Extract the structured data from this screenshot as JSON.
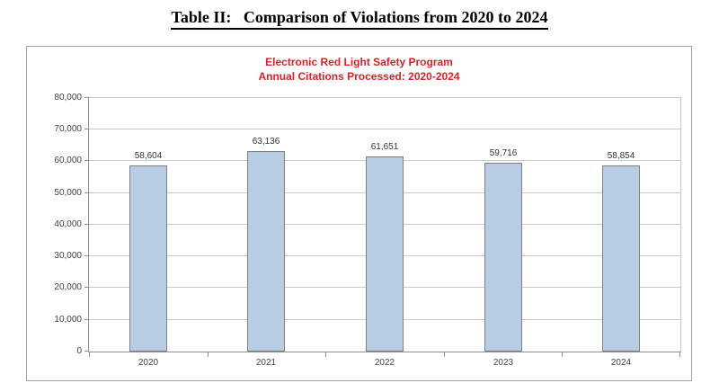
{
  "page": {
    "title": "Table II:   Comparison of Violations from 2020 to 2024"
  },
  "chart_data": {
    "type": "bar",
    "title": "Electronic Red Light Safety Program",
    "subtitle": "Annual Citations Processed: 2020-2024",
    "title_color": "#e01e25",
    "categories": [
      "2020",
      "2021",
      "2022",
      "2023",
      "2024"
    ],
    "values": [
      58604,
      63136,
      61651,
      59716,
      58854
    ],
    "value_labels": [
      "58,604",
      "63,136",
      "61,651",
      "59,716",
      "58,854"
    ],
    "xlabel": "",
    "ylabel": "",
    "ylim": [
      0,
      80000
    ],
    "ytick_step": 10000,
    "ytick_labels": [
      "0",
      "10,000",
      "20,000",
      "30,000",
      "40,000",
      "50,000",
      "60,000",
      "70,000",
      "80,000"
    ],
    "grid": true,
    "legend_position": "none",
    "colors": {
      "bar_fill": "#b8cce4",
      "bar_border": "#7f7f7f",
      "gridline": "#c9c9c9",
      "axis": "#8f8f8f"
    }
  }
}
